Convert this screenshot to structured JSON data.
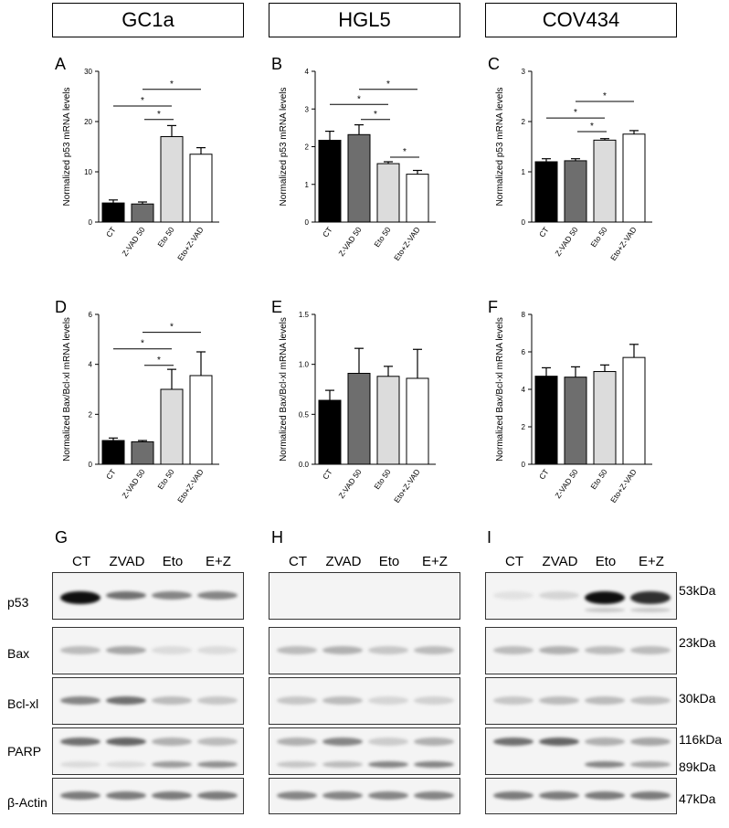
{
  "headers": [
    "GC1a",
    "HGL5",
    "COV434"
  ],
  "panels": [
    {
      "letter": "A",
      "ylabel": "Normalized p53 mRNA levels",
      "ymax": 30,
      "ticks": [
        0,
        10,
        20,
        30
      ],
      "categories": [
        "CT",
        "Z-VAD 50",
        "Eto 50",
        "Eto+Z-VAD"
      ],
      "values": [
        3.8,
        3.6,
        17,
        13.5
      ],
      "errors": [
        0.6,
        0.4,
        2.2,
        1.3
      ],
      "sig": [
        {
          "from": 0,
          "to": 2,
          "level": 0.77,
          "label": "*"
        },
        {
          "from": 1,
          "to": 3,
          "level": 0.88,
          "label": "*"
        },
        {
          "from": 2,
          "to": 2.4,
          "level": 0.68,
          "label": "*",
          "short": true
        }
      ]
    },
    {
      "letter": "B",
      "ylabel": "Normalized p53 mRNA levels",
      "ymax": 4,
      "ticks": [
        0,
        1,
        2,
        3,
        4
      ],
      "categories": [
        "CT",
        "Z-VAD 50",
        "Eto 50",
        "Eto+Z-VAD"
      ],
      "values": [
        2.17,
        2.32,
        1.55,
        1.27
      ],
      "errors": [
        0.24,
        0.26,
        0.05,
        0.1
      ],
      "sig": [
        {
          "from": 0,
          "to": 2,
          "level": 0.78,
          "label": "*"
        },
        {
          "from": 1,
          "to": 3,
          "level": 0.88,
          "label": "*"
        },
        {
          "from": 2,
          "to": 2.4,
          "level": 0.68,
          "label": "*",
          "short": true
        },
        {
          "from": 3,
          "to": 3.4,
          "level": 0.43,
          "label": "*",
          "short": true
        }
      ]
    },
    {
      "letter": "C",
      "ylabel": "Normalized p53 mRNA levels",
      "ymax": 3,
      "ticks": [
        0,
        1,
        2,
        3
      ],
      "categories": [
        "CT",
        "Z-VAD 50",
        "Eto 50",
        "Eto+Z-VAD"
      ],
      "values": [
        1.2,
        1.22,
        1.63,
        1.75
      ],
      "errors": [
        0.06,
        0.04,
        0.03,
        0.07
      ],
      "sig": [
        {
          "from": 0,
          "to": 2,
          "level": 0.69,
          "label": "*"
        },
        {
          "from": 1,
          "to": 3,
          "level": 0.8,
          "label": "*"
        },
        {
          "from": 2,
          "to": 2.4,
          "level": 0.6,
          "label": "*",
          "short": true
        }
      ]
    },
    {
      "letter": "D",
      "ylabel": "Normalized Bax/Bcl-xl mRNA levels",
      "ymax": 6,
      "ticks": [
        0,
        2,
        4,
        6
      ],
      "categories": [
        "CT",
        "Z-VAD 50",
        "Eto 50",
        "Eto+Z-VAD"
      ],
      "values": [
        0.95,
        0.9,
        3.0,
        3.55
      ],
      "errors": [
        0.1,
        0.05,
        0.8,
        0.95
      ],
      "sig": [
        {
          "from": 0,
          "to": 2,
          "level": 0.77,
          "label": "*"
        },
        {
          "from": 1,
          "to": 3,
          "level": 0.88,
          "label": "*"
        },
        {
          "from": 2,
          "to": 2.4,
          "level": 0.66,
          "label": "*",
          "short": true
        }
      ]
    },
    {
      "letter": "E",
      "ylabel": "Normalized Bax/Bcl-xl mRNA levels",
      "ymax": 1.5,
      "ticks": [
        0.0,
        0.5,
        1.0,
        1.5
      ],
      "categories": [
        "CT",
        "Z-VAD 50",
        "Eto 50",
        "Eto+Z-VAD"
      ],
      "values": [
        0.64,
        0.91,
        0.88,
        0.86
      ],
      "errors": [
        0.1,
        0.25,
        0.1,
        0.29
      ],
      "sig": []
    },
    {
      "letter": "F",
      "ylabel": "Normalized Bax/Bcl-xl mRNA levels",
      "ymax": 8,
      "ticks": [
        0,
        2,
        4,
        6,
        8
      ],
      "categories": [
        "CT",
        "Z-VAD 50",
        "Eto 50",
        "Eto+Z-VAD"
      ],
      "values": [
        4.7,
        4.65,
        4.95,
        5.7
      ],
      "errors": [
        0.45,
        0.55,
        0.35,
        0.7
      ],
      "sig": []
    }
  ],
  "bar_colors": [
    "#000000",
    "#6e6e6e",
    "#dcdcdc",
    "#ffffff"
  ],
  "blots": {
    "letters": [
      "G",
      "H",
      "I"
    ],
    "columns": [
      "CT",
      "ZVAD",
      "Eto",
      "E+Z"
    ],
    "rows": [
      "p53",
      "Bax",
      "Bcl-xl",
      "PARP",
      "β-Actin"
    ],
    "kda": [
      "53kDa",
      "23kDa",
      "30kDa",
      "116kDa",
      "89kDa",
      "47kDa"
    ]
  },
  "chart_data": {
    "type": "bar",
    "categories": [
      "CT",
      "Z-VAD 50",
      "Eto 50",
      "Eto+Z-VAD"
    ],
    "charts": [
      {
        "panel": "A",
        "group": "GC1a",
        "ylabel": "Normalized p53 mRNA levels",
        "ylim": [
          0,
          30
        ],
        "values": [
          3.8,
          3.6,
          17,
          13.5
        ]
      },
      {
        "panel": "B",
        "group": "HGL5",
        "ylabel": "Normalized p53 mRNA levels",
        "ylim": [
          0,
          4
        ],
        "values": [
          2.17,
          2.32,
          1.55,
          1.27
        ]
      },
      {
        "panel": "C",
        "group": "COV434",
        "ylabel": "Normalized p53 mRNA levels",
        "ylim": [
          0,
          3
        ],
        "values": [
          1.2,
          1.22,
          1.63,
          1.75
        ]
      },
      {
        "panel": "D",
        "group": "GC1a",
        "ylabel": "Normalized Bax/Bcl-xl mRNA levels",
        "ylim": [
          0,
          6
        ],
        "values": [
          0.95,
          0.9,
          3.0,
          3.55
        ]
      },
      {
        "panel": "E",
        "group": "HGL5",
        "ylabel": "Normalized Bax/Bcl-xl mRNA levels",
        "ylim": [
          0,
          1.5
        ],
        "values": [
          0.64,
          0.91,
          0.88,
          0.86
        ]
      },
      {
        "panel": "F",
        "group": "COV434",
        "ylabel": "Normalized Bax/Bcl-xl mRNA levels",
        "ylim": [
          0,
          8
        ],
        "values": [
          4.7,
          4.65,
          4.95,
          5.7
        ]
      }
    ]
  }
}
